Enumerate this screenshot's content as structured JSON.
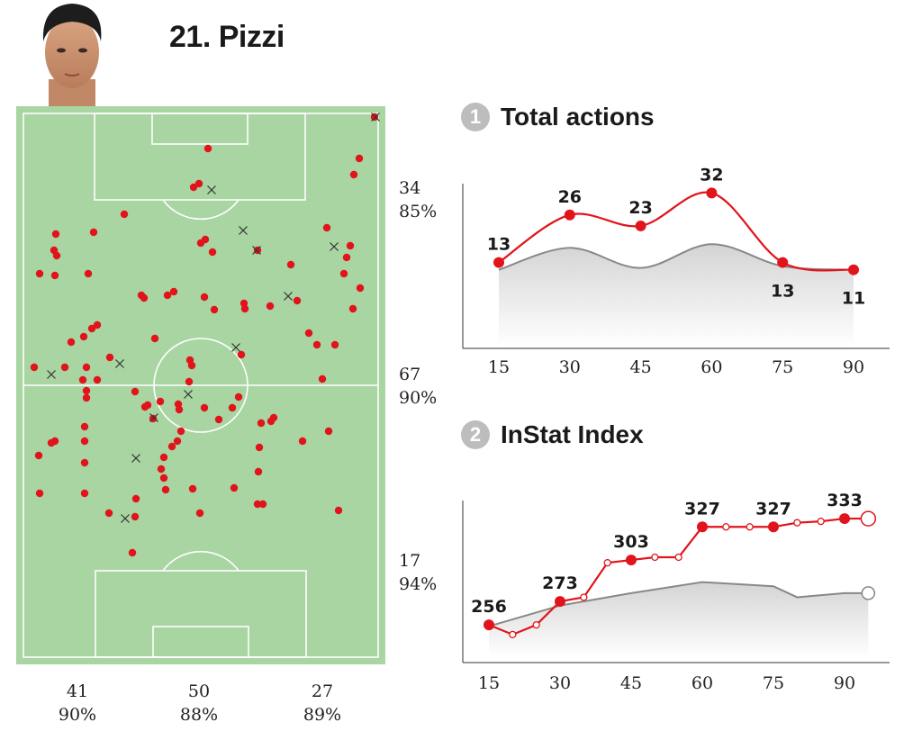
{
  "player": {
    "name": "21. Pizzi"
  },
  "pitch": {
    "zone_stats_right": [
      {
        "count": "34",
        "pct": "85%"
      },
      {
        "count": "67",
        "pct": "90%"
      },
      {
        "count": "17",
        "pct": "94%"
      }
    ],
    "zone_stats_bottom": [
      {
        "count": "41",
        "pct": "90%"
      },
      {
        "count": "50",
        "pct": "88%"
      },
      {
        "count": "27",
        "pct": "89%"
      }
    ],
    "colors": {
      "grass": "#a8d5a2",
      "line": "#ffffff",
      "success_dot": "#e2141b",
      "fail_mark": "#333333"
    }
  },
  "sections": {
    "total_actions": {
      "number": "1",
      "title": "Total actions"
    },
    "instat_index": {
      "number": "2",
      "title": "InStat Index"
    }
  },
  "chart_data": [
    {
      "type": "line",
      "title": "Total actions",
      "x": [
        15,
        30,
        45,
        60,
        75,
        90
      ],
      "series": [
        {
          "values": [
            13,
            26,
            23,
            32,
            13,
            11
          ],
          "color": "#e2141b"
        },
        {
          "values": [
            11,
            17,
            11.5,
            18,
            12,
            11
          ],
          "color": "#888888"
        }
      ],
      "data_labels": [
        "13",
        "26",
        "23",
        "32",
        "13",
        "11"
      ],
      "ylim": [
        -10,
        38
      ],
      "xlim": [
        15,
        90
      ]
    },
    {
      "type": "line",
      "title": "InStat Index",
      "x": [
        15,
        30,
        45,
        60,
        75,
        90
      ],
      "series": [
        {
          "x": [
            15,
            20,
            25,
            30,
            35,
            40,
            45,
            50,
            55,
            60,
            65,
            70,
            75,
            80,
            85,
            90,
            95
          ],
          "values": [
            256,
            249,
            256,
            273,
            276,
            301,
            303,
            305,
            305,
            327,
            327,
            327,
            327,
            330,
            331,
            333,
            333
          ],
          "major": [
            15,
            30,
            45,
            60,
            75,
            90
          ],
          "color": "#e2141b"
        },
        {
          "x": [
            15,
            30,
            45,
            60,
            65,
            75,
            80,
            90,
            95
          ],
          "values": [
            255,
            270,
            279,
            287,
            286,
            284,
            276,
            279,
            279
          ],
          "color": "#888888"
        }
      ],
      "data_labels": [
        "256",
        "273",
        "303",
        "327",
        "327",
        "333"
      ],
      "ylim": [
        200,
        350
      ],
      "xlim": [
        15,
        95
      ]
    }
  ]
}
